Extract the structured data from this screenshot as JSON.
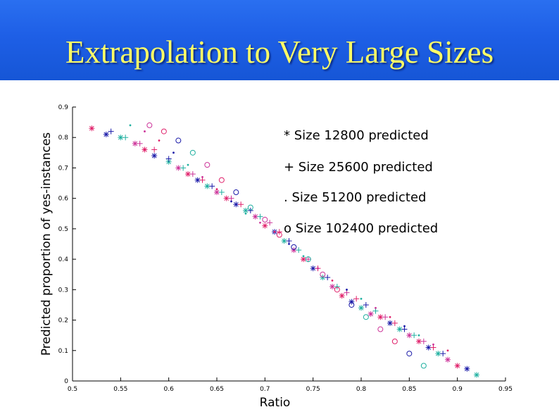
{
  "slide": {
    "title": "Extrapolation to Very Large Sizes",
    "banner_color": "#1e5fe6",
    "title_color": "#ffff66"
  },
  "chart_data": {
    "type": "scatter",
    "xlabel": "Ratio",
    "ylabel": "Predicted proportion of yes-instances",
    "xlim": [
      0.5,
      0.95
    ],
    "ylim": [
      0,
      0.9
    ],
    "x_ticks": [
      "0.5",
      "0.55",
      "0.6",
      "0.65",
      "0.7",
      "0.75",
      "0.8",
      "0.85",
      "0.9",
      "0.95"
    ],
    "y_ticks": [
      "0",
      "0.1",
      "0.2",
      "0.3",
      "0.4",
      "0.5",
      "0.6",
      "0.7",
      "0.8",
      "0.9"
    ],
    "grid": false,
    "legend_position": "top-right",
    "legend": [
      "* Size 12800 predicted",
      "+ Size 25600 predicted",
      ". Size 51200 predicted",
      "o Size 102400 predicted"
    ],
    "marker_colors": [
      "#e0206a",
      "#1a1aa8",
      "#20b0a0",
      "#cc3399"
    ],
    "series": [
      {
        "marker": "*",
        "x": [
          0.52,
          0.535,
          0.55,
          0.565,
          0.575,
          0.585,
          0.6,
          0.61,
          0.62,
          0.63,
          0.64,
          0.65,
          0.66,
          0.67,
          0.68,
          0.69,
          0.7,
          0.71,
          0.72,
          0.73,
          0.74,
          0.75,
          0.76,
          0.77,
          0.78,
          0.79,
          0.8,
          0.81,
          0.82,
          0.83,
          0.84,
          0.85,
          0.86,
          0.87,
          0.88,
          0.89,
          0.9,
          0.91,
          0.92
        ],
        "y": [
          0.83,
          0.81,
          0.8,
          0.78,
          0.76,
          0.74,
          0.72,
          0.7,
          0.68,
          0.66,
          0.64,
          0.62,
          0.6,
          0.58,
          0.56,
          0.54,
          0.51,
          0.49,
          0.46,
          0.43,
          0.4,
          0.37,
          0.34,
          0.31,
          0.28,
          0.26,
          0.24,
          0.22,
          0.21,
          0.19,
          0.17,
          0.15,
          0.13,
          0.11,
          0.09,
          0.07,
          0.05,
          0.04,
          0.02
        ]
      },
      {
        "marker": "+",
        "x": [
          0.54,
          0.555,
          0.57,
          0.585,
          0.6,
          0.615,
          0.625,
          0.635,
          0.645,
          0.655,
          0.665,
          0.675,
          0.685,
          0.695,
          0.705,
          0.715,
          0.725,
          0.735,
          0.745,
          0.755,
          0.765,
          0.775,
          0.785,
          0.795,
          0.805,
          0.815,
          0.825,
          0.835,
          0.845,
          0.855,
          0.865,
          0.875,
          0.885
        ],
        "y": [
          0.82,
          0.8,
          0.78,
          0.76,
          0.73,
          0.7,
          0.68,
          0.66,
          0.64,
          0.62,
          0.6,
          0.58,
          0.56,
          0.54,
          0.52,
          0.49,
          0.46,
          0.43,
          0.4,
          0.37,
          0.34,
          0.31,
          0.29,
          0.27,
          0.25,
          0.23,
          0.21,
          0.19,
          0.17,
          0.15,
          0.13,
          0.11,
          0.09
        ]
      },
      {
        "marker": ".",
        "x": [
          0.56,
          0.575,
          0.59,
          0.605,
          0.62,
          0.635,
          0.65,
          0.665,
          0.68,
          0.695,
          0.71,
          0.725,
          0.74,
          0.755,
          0.77,
          0.785,
          0.8,
          0.815,
          0.83,
          0.845,
          0.86,
          0.875,
          0.89
        ],
        "y": [
          0.84,
          0.82,
          0.79,
          0.75,
          0.71,
          0.67,
          0.63,
          0.59,
          0.55,
          0.52,
          0.49,
          0.45,
          0.41,
          0.37,
          0.33,
          0.3,
          0.27,
          0.24,
          0.21,
          0.18,
          0.15,
          0.12,
          0.1
        ]
      },
      {
        "marker": "o",
        "x": [
          0.58,
          0.595,
          0.61,
          0.625,
          0.64,
          0.655,
          0.67,
          0.685,
          0.7,
          0.715,
          0.73,
          0.745,
          0.76,
          0.775,
          0.79,
          0.805,
          0.82,
          0.835,
          0.85,
          0.865
        ],
        "y": [
          0.84,
          0.82,
          0.79,
          0.75,
          0.71,
          0.66,
          0.62,
          0.57,
          0.53,
          0.48,
          0.44,
          0.4,
          0.35,
          0.3,
          0.25,
          0.21,
          0.17,
          0.13,
          0.09,
          0.05
        ]
      }
    ]
  }
}
